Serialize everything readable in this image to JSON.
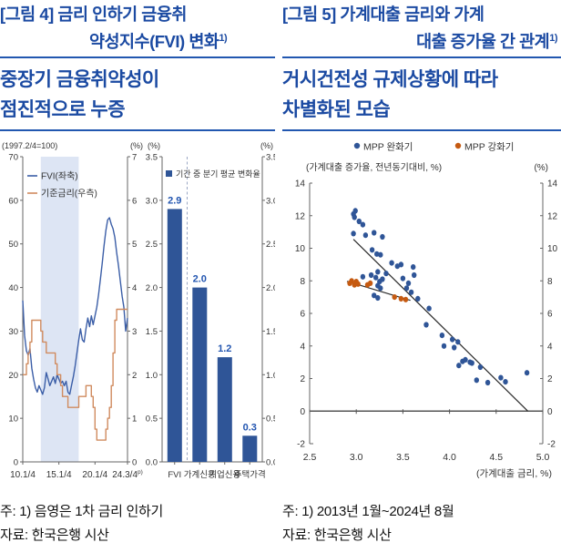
{
  "page": {
    "accent_blue": "#1b4aa2",
    "rule_color": "#2257b0"
  },
  "figure4": {
    "title_line1": "[그림 4] 금리 인하기 금융취",
    "title_line2": "약성지수(FVI) 변화",
    "title_sup": "1)",
    "subtitle_line1": "중장기 금융취약성이",
    "subtitle_line2": "점진적으로 누증",
    "note": "주: 1) 음영은 1차 금리 인하기",
    "source": "자료: 한국은행 시산"
  },
  "figure5": {
    "title_line1": "[그림 5] 가계대출 금리와 가계",
    "title_line2": "대출 증가율 간 관계",
    "title_sup": "1)",
    "subtitle_line1": "거시건전성 규제상황에 따라",
    "subtitle_line2": "차별화된 모습",
    "note": "주: 1) 2013년 1월~2024년 8월",
    "source": "자료: 한국은행 시산"
  },
  "chart_data": [
    {
      "type": "line",
      "name": "fvi-and-base-rate",
      "left_axis_title": "(1997.2/4=100)",
      "right_axis_title": "(%)",
      "left_ticks": [
        0,
        10,
        20,
        30,
        40,
        50,
        60,
        70
      ],
      "right_ticks": [
        0,
        1,
        2,
        3,
        4,
        5,
        6,
        7
      ],
      "left_range": [
        0,
        70
      ],
      "right_range": [
        0,
        7
      ],
      "x_tick_labels": [
        "10.1/4",
        "15.1/4",
        "20.1/4",
        "24.3/4"
      ],
      "x_last_sup": "p)",
      "x_tick_positions": [
        0,
        20,
        40,
        58
      ],
      "n_points": 59,
      "shade_span": [
        10,
        31
      ],
      "shade_color": "#dde5f4",
      "series": [
        {
          "name": "FVI(좌축)",
          "axis": "left",
          "step": false,
          "color": "#3b5ea7",
          "values": [
            37,
            29,
            25.5,
            24.5,
            26,
            21.5,
            19,
            17,
            16,
            17.5,
            16.5,
            15.5,
            17,
            20.5,
            19,
            17.5,
            18.5,
            19.5,
            18,
            20,
            19,
            18,
            18.5,
            17.5,
            18.5,
            16,
            15.5,
            17.5,
            19.5,
            22,
            25,
            28,
            30.5,
            28,
            27.5,
            30.5,
            33,
            31,
            33.5,
            31.5,
            33.5,
            35.5,
            38.5,
            42,
            45.5,
            49.5,
            53,
            55.5,
            56,
            54.5,
            53.5,
            51.5,
            48,
            45,
            41.5,
            38,
            35.5,
            30,
            33
          ]
        },
        {
          "name": "기준금리(우측)",
          "axis": "right",
          "step": true,
          "color": "#d08b5f",
          "values": [
            2.0,
            2.0,
            2.25,
            2.5,
            2.75,
            3.25,
            3.25,
            3.25,
            3.25,
            3.25,
            3.0,
            2.75,
            2.75,
            2.5,
            2.5,
            2.5,
            2.5,
            2.5,
            2.25,
            2.0,
            2.0,
            1.75,
            1.5,
            1.5,
            1.5,
            1.25,
            1.25,
            1.25,
            1.25,
            1.25,
            1.25,
            1.5,
            1.5,
            1.5,
            1.5,
            1.75,
            1.75,
            1.75,
            1.5,
            1.25,
            0.75,
            0.5,
            0.5,
            0.5,
            0.5,
            0.5,
            0.75,
            1.0,
            1.25,
            1.75,
            2.5,
            3.25,
            3.5,
            3.5,
            3.5,
            3.5,
            3.5,
            3.5,
            3.5
          ]
        }
      ]
    },
    {
      "type": "bar",
      "name": "avg-quarterly-change",
      "legend": "기간 중 분기 평균 변화율",
      "left_axis_title": "(%)",
      "right_axis_title": "(%)",
      "categories": [
        "FVI",
        "가계신용",
        "기업신용",
        "주택가격"
      ],
      "values": [
        2.9,
        2.0,
        1.2,
        0.3
      ],
      "ticks": [
        0,
        0.5,
        1,
        1.5,
        2,
        2.5,
        3,
        3.5
      ],
      "ylim": [
        0,
        3.5
      ],
      "bar_color": "#2f5597",
      "label_color": "#2255b0",
      "divider_after_first": true
    },
    {
      "type": "scatter",
      "name": "loan-rate-vs-loan-growth",
      "ylabel": "(가계대출 증가율, 전년동기대비, %)",
      "right_axis_title": "(%)",
      "xlabel": "(가계대출 금리, %)",
      "xticks": [
        2.5,
        3.0,
        3.5,
        4.0,
        4.5,
        5.0
      ],
      "yticks": [
        -2,
        0,
        2,
        4,
        6,
        8,
        10,
        12,
        14
      ],
      "xlim": [
        2.5,
        5.0
      ],
      "ylim": [
        -2,
        14
      ],
      "series": [
        {
          "name": "MPP 완화기",
          "color": "#2f5597",
          "points": [
            [
              2.97,
              12.1
            ],
            [
              2.99,
              12.3
            ],
            [
              2.98,
              11.9
            ],
            [
              3.03,
              11.65
            ],
            [
              3.07,
              11.45
            ],
            [
              2.97,
              10.9
            ],
            [
              3.1,
              10.8
            ],
            [
              3.19,
              10.95
            ],
            [
              3.28,
              10.7
            ],
            [
              3.17,
              9.9
            ],
            [
              3.22,
              9.65
            ],
            [
              3.26,
              9.6
            ],
            [
              3.38,
              9.1
            ],
            [
              3.44,
              8.9
            ],
            [
              3.48,
              9.0
            ],
            [
              3.61,
              8.85
            ],
            [
              3.23,
              8.55
            ],
            [
              3.32,
              8.45
            ],
            [
              3.16,
              8.35
            ],
            [
              3.21,
              8.2
            ],
            [
              3.07,
              8.25
            ],
            [
              3.25,
              7.95
            ],
            [
              3.28,
              8.1
            ],
            [
              3.23,
              7.7
            ],
            [
              3.26,
              7.55
            ],
            [
              3.19,
              7.1
            ],
            [
              3.23,
              6.95
            ],
            [
              3.62,
              8.35
            ],
            [
              3.5,
              8.15
            ],
            [
              3.56,
              7.85
            ],
            [
              3.54,
              7.55
            ],
            [
              3.59,
              7.3
            ],
            [
              3.66,
              6.9
            ],
            [
              3.78,
              6.3
            ],
            [
              3.75,
              5.3
            ],
            [
              3.92,
              4.65
            ],
            [
              3.94,
              4.0
            ],
            [
              4.03,
              4.4
            ],
            [
              4.05,
              3.9
            ],
            [
              4.09,
              4.25
            ],
            [
              4.1,
              2.8
            ],
            [
              4.14,
              3.05
            ],
            [
              4.17,
              3.15
            ],
            [
              4.22,
              3.0
            ],
            [
              4.24,
              2.95
            ],
            [
              4.29,
              1.9
            ],
            [
              4.33,
              2.7
            ],
            [
              4.41,
              1.75
            ],
            [
              4.55,
              2.05
            ],
            [
              4.6,
              1.8
            ],
            [
              4.83,
              2.35
            ]
          ]
        },
        {
          "name": "MPP 강화기",
          "color": "#c55a11",
          "points": [
            [
              2.93,
              7.85
            ],
            [
              2.95,
              8.0
            ],
            [
              2.98,
              7.75
            ],
            [
              3.0,
              7.95
            ],
            [
              3.02,
              7.8
            ],
            [
              3.12,
              7.75
            ],
            [
              3.15,
              7.85
            ],
            [
              3.41,
              7.0
            ],
            [
              3.48,
              6.9
            ],
            [
              3.53,
              6.85
            ]
          ]
        }
      ],
      "trend_lines": [
        {
          "series": "MPP 완화기",
          "from": [
            2.97,
            10.55
          ],
          "to": [
            4.84,
            0
          ]
        },
        {
          "series": "MPP 강화기",
          "from": [
            2.9,
            7.97
          ],
          "to": [
            3.58,
            6.8
          ]
        }
      ]
    }
  ]
}
